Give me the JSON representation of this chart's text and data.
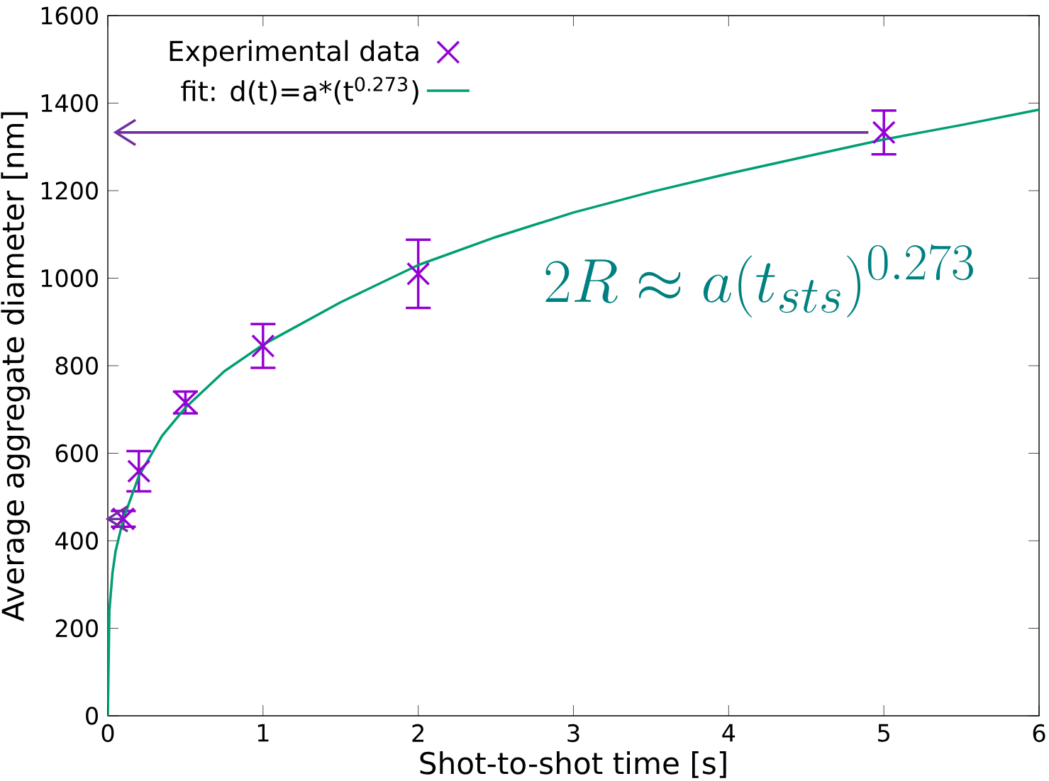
{
  "chart_data": {
    "type": "scatter",
    "xlabel": "Shot-to-shot time  [s]",
    "ylabel": "Average aggregate diameter [nm]",
    "xlim": [
      0,
      6
    ],
    "xticks": [
      0,
      1,
      2,
      3,
      4,
      5,
      6
    ],
    "ylim": [
      0,
      1600
    ],
    "yticks": [
      0,
      200,
      400,
      600,
      800,
      1000,
      1200,
      1400,
      1600
    ],
    "grid": false,
    "legend": "top left",
    "series": [
      {
        "name": "Experimental data",
        "marker": "cross",
        "color": "#9400d3",
        "x": [
          0.1,
          0.2,
          0.5,
          1,
          2,
          5
        ],
        "values": [
          450,
          559,
          716,
          845,
          1010,
          1333
        ],
        "errors": [
          18,
          46,
          25,
          50,
          78,
          50
        ]
      },
      {
        "name": "fit: d(t)=a*(t$^{0.273}$)",
        "type": "line",
        "line_style": "solid",
        "color": "#009e73",
        "x": [
          0,
          0.01,
          0.03,
          0.05,
          0.1,
          0.2,
          0.35,
          0.5,
          0.75,
          1,
          1.5,
          2,
          2.5,
          3,
          3.5,
          4,
          4.5,
          5,
          5.5,
          6
        ],
        "values": [
          0,
          240,
          326,
          376,
          450,
          548,
          640,
          704,
          787,
          848,
          945,
          1030,
          1094,
          1150,
          1197,
          1239,
          1278,
          1317,
          1350,
          1385
        ]
      },
      {
        "type": "line",
        "color": "#7030a0",
        "x": [
          4.9,
          0.05
        ],
        "values": [
          1333,
          1333
        ]
      },
      {
        "type": "line",
        "color": "#7030a0",
        "x": [
          0.1,
          0
        ],
        "values": [
          450,
          450
        ]
      }
    ],
    "annotations": [
      "2R \\approx a(t_{sts})^{0.273}"
    ]
  }
}
